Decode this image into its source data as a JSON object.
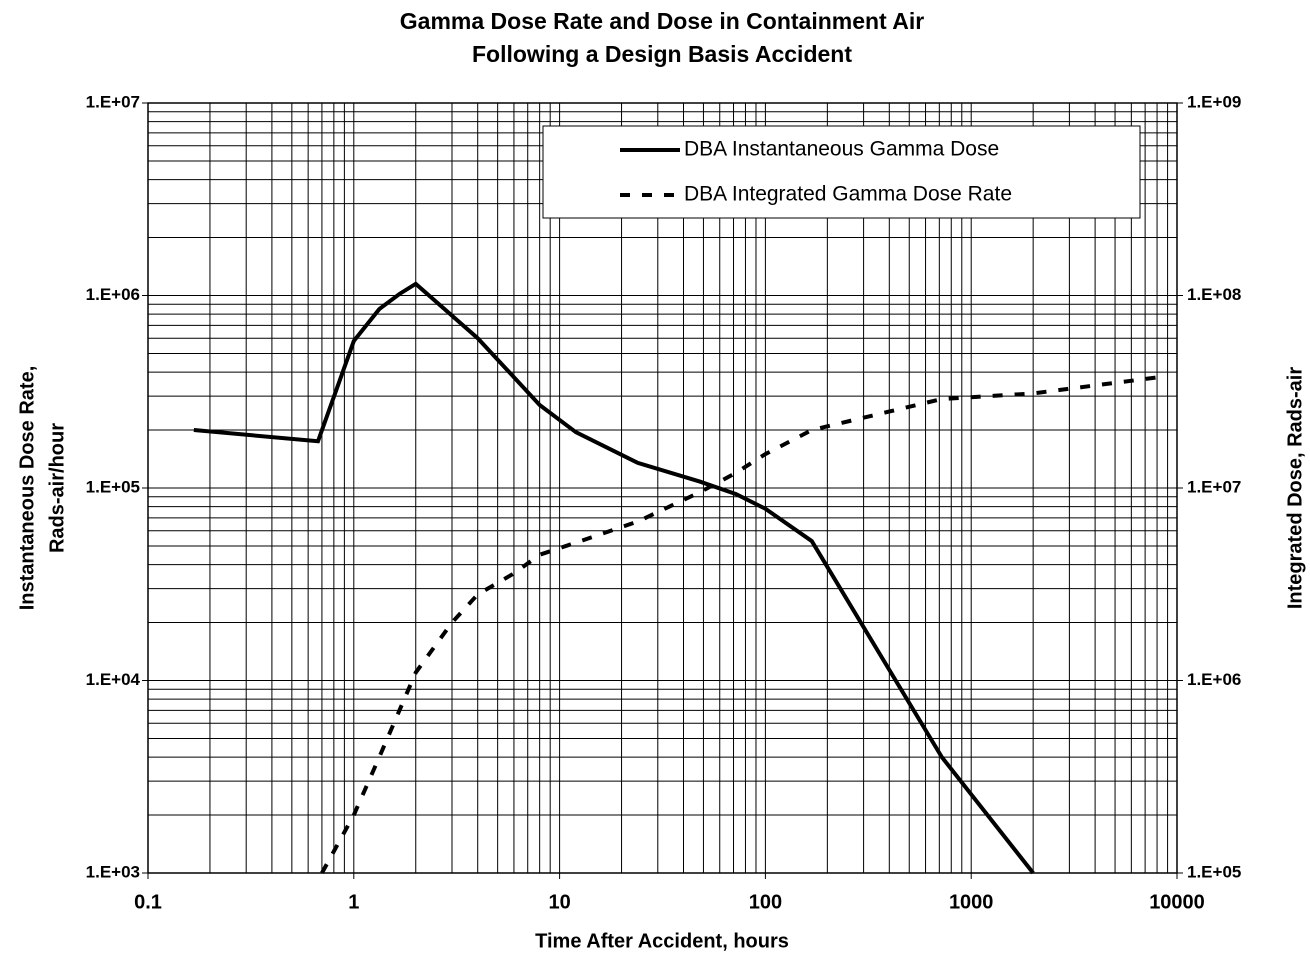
{
  "chart_data": {
    "type": "line",
    "title": [
      "Gamma Dose Rate and Dose in Containment Air",
      "Following a Design Basis Accident"
    ],
    "xlabel": "Time After Accident, hours",
    "ylabel": [
      "Instantaneous Dose Rate,",
      "Rads-air/hour"
    ],
    "y2label": "Integrated Dose, Rads-air",
    "xscale": "log",
    "yscale": "log",
    "y2scale": "log",
    "grid": true,
    "legend": "upper right",
    "xlim": [
      0.1,
      10000
    ],
    "xticks": [
      0.1,
      1,
      10,
      100,
      1000,
      10000
    ],
    "ylim": [
      1000,
      10000000
    ],
    "yticks": [
      {
        "value": 1000,
        "label": "1.E+03"
      },
      {
        "value": 10000,
        "label": "1.E+04"
      },
      {
        "value": 100000,
        "label": "1.E+05"
      },
      {
        "value": 1000000,
        "label": "1.E+06"
      },
      {
        "value": 10000000,
        "label": "1.E+07"
      }
    ],
    "y2lim": [
      100000,
      1000000000
    ],
    "y2ticks": [
      {
        "value": 100000,
        "label": "1.E+05"
      },
      {
        "value": 1000000,
        "label": "1.E+06"
      },
      {
        "value": 10000000,
        "label": "1.E+07"
      },
      {
        "value": 100000000,
        "label": "1.E+08"
      },
      {
        "value": 1000000000,
        "label": "1.E+09"
      }
    ],
    "series": [
      {
        "name": "DBA Instantaneous Gamma Dose",
        "color": "#000000",
        "linestyle": "solid",
        "x": [
          0.167,
          0.67,
          1,
          1.33,
          1.67,
          2,
          4,
          8,
          12,
          24,
          48,
          72,
          100,
          168,
          720,
          2000
        ],
        "values": [
          200000,
          175000,
          580000,
          850000,
          1020000,
          1150000,
          600000,
          270000,
          195000,
          135000,
          108000,
          93000,
          78000,
          53000,
          4000,
          1000
        ]
      },
      {
        "name": "DBA Integrated Gamma Dose Rate",
        "color": "#000000",
        "linestyle": "dashed",
        "axis": "y2",
        "x": [
          0.7,
          1,
          1.33,
          2,
          3,
          4,
          6,
          8,
          12,
          24,
          48,
          72,
          100,
          168,
          720,
          2000,
          8760
        ],
        "values": [
          100000,
          200000,
          400000,
          1100000,
          2000000,
          2800000,
          3600000,
          4500000,
          5200000,
          6700000,
          9500000,
          12000000,
          15000000,
          20000000,
          29000000,
          31000000,
          38000000
        ]
      }
    ]
  }
}
